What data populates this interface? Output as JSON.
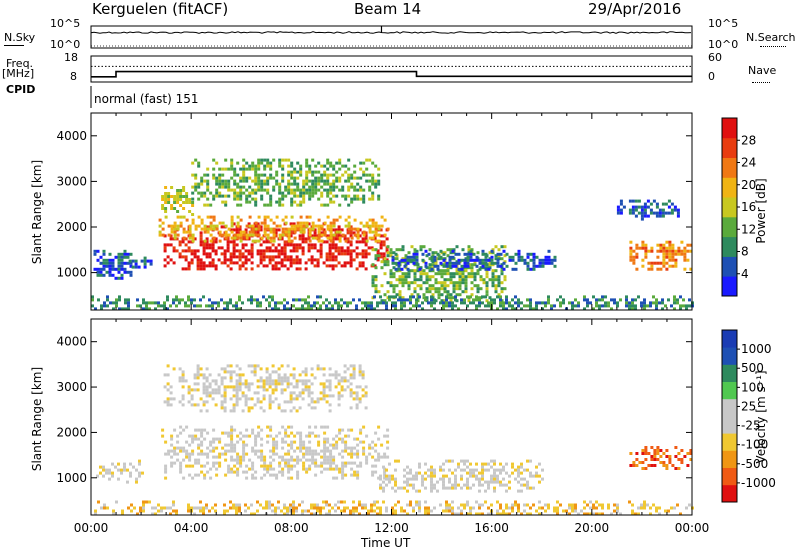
{
  "header": {
    "station": "Kerguelen (fitACF)",
    "beam": "Beam 14",
    "date": "29/Apr/2016"
  },
  "top_panels": {
    "nsky_label": "N.Sky",
    "nsearch_label": "N.Search",
    "nsky_ticks": [
      "10^5",
      "10^0"
    ],
    "nsearch_ticks": [
      "10^5",
      "10^0"
    ],
    "freq_label": "Freq.",
    "freq_unit": "[MHz]",
    "freq_ticks": [
      "18",
      "8"
    ],
    "nave_label": "Nave",
    "nave_ticks": [
      "60",
      "0"
    ],
    "cpid_label": "CPID",
    "cpid_value": "normal (fast) 151"
  },
  "time_axis": {
    "ticks": [
      "00:00",
      "04:00",
      "08:00",
      "12:00",
      "16:00",
      "20:00",
      "00:00"
    ],
    "label": "Time UT"
  },
  "colors": {
    "power": [
      "#1a1aff",
      "#1e50b4",
      "#2e8a5e",
      "#5aaa3c",
      "#c8c820",
      "#f0b414",
      "#f07814",
      "#e83c10",
      "#e01010"
    ],
    "velocity": [
      "#e01010",
      "#f05a14",
      "#f09614",
      "#f0c832",
      "#c8c8c8",
      "#c8c8c8",
      "#50c850",
      "#2e8a5e",
      "#1e50b4",
      "#1a3cb4"
    ]
  },
  "chart_data": [
    {
      "type": "line",
      "name": "nsky-nsearch",
      "x_range_hours": [
        0,
        24
      ],
      "nsky_level": "high",
      "nsearch_level": "low"
    },
    {
      "type": "line",
      "name": "freq-nave",
      "x_range_hours": [
        0,
        24
      ],
      "freq_series": {
        "x": [
          0,
          1,
          1,
          13,
          13,
          24
        ],
        "y": [
          10,
          10,
          12,
          12,
          10.2,
          10.2
        ]
      },
      "nave_series": {
        "x": [
          0,
          24
        ],
        "y": [
          36,
          36
        ]
      },
      "ylim_freq": [
        8,
        18
      ],
      "ylim_nave": [
        0,
        60
      ]
    },
    {
      "type": "heatmap",
      "name": "power",
      "ylabel": "Slant Range [km]",
      "y_ticks": [
        "4000",
        "3000",
        "2000",
        "1000"
      ],
      "ylim": [
        180,
        4500
      ],
      "colorbar_label": "Power [dB]",
      "colorbar_ticks": [
        "28",
        "24",
        "20",
        "16",
        "12",
        "8",
        "4"
      ],
      "regions": [
        {
          "t0": 2.9,
          "t1": 11.8,
          "r0": 1050,
          "r1": 2100,
          "level": 8
        },
        {
          "t0": 2.7,
          "t1": 11.9,
          "r0": 1700,
          "r1": 2250,
          "level": 5
        },
        {
          "t0": 0.1,
          "t1": 1.6,
          "r0": 850,
          "r1": 1500,
          "level": 1
        },
        {
          "t0": 1.5,
          "t1": 2.4,
          "r0": 1100,
          "r1": 1350,
          "level": 1
        },
        {
          "t0": 2.8,
          "t1": 4.0,
          "r0": 2300,
          "r1": 2900,
          "level": 4
        },
        {
          "t0": 4.0,
          "t1": 11.5,
          "r0": 2500,
          "r1": 3500,
          "level": 3
        },
        {
          "t0": 11.2,
          "t1": 16.5,
          "r0": 400,
          "r1": 1600,
          "level": 3
        },
        {
          "t0": 12.0,
          "t1": 18.5,
          "r0": 1100,
          "r1": 1500,
          "level": 1
        },
        {
          "t0": 21.5,
          "t1": 24.0,
          "r0": 1100,
          "r1": 1700,
          "level": 6
        },
        {
          "t0": 21.0,
          "t1": 23.5,
          "r0": 2200,
          "r1": 2600,
          "level": 1
        },
        {
          "t0": 0.0,
          "t1": 24.0,
          "r0": 200,
          "r1": 500,
          "level": 2
        }
      ]
    },
    {
      "type": "heatmap",
      "name": "velocity",
      "ylabel": "Slant Range [km]",
      "y_ticks": [
        "4000",
        "3000",
        "2000",
        "1000"
      ],
      "ylim": [
        180,
        4500
      ],
      "colorbar_label": "Velocity [m s⁻¹]",
      "colorbar_ticks": [
        "1000",
        "500",
        "100",
        "25",
        "-25",
        "-100",
        "-500",
        "-1000"
      ],
      "regions": [
        {
          "t0": 2.8,
          "t1": 11.8,
          "r0": 1000,
          "r1": 2150,
          "level": 4
        },
        {
          "t0": 0.2,
          "t1": 2.0,
          "r0": 900,
          "r1": 1400,
          "level": 4
        },
        {
          "t0": 11.5,
          "t1": 18.0,
          "r0": 700,
          "r1": 1400,
          "level": 4
        },
        {
          "t0": 21.5,
          "t1": 24.0,
          "r0": 1200,
          "r1": 1700,
          "level": 1
        },
        {
          "t0": 2.9,
          "t1": 11.0,
          "r0": 2500,
          "r1": 3500,
          "level": 4
        },
        {
          "t0": 0.0,
          "t1": 24.0,
          "r0": 200,
          "r1": 500,
          "level": 3
        }
      ]
    }
  ]
}
